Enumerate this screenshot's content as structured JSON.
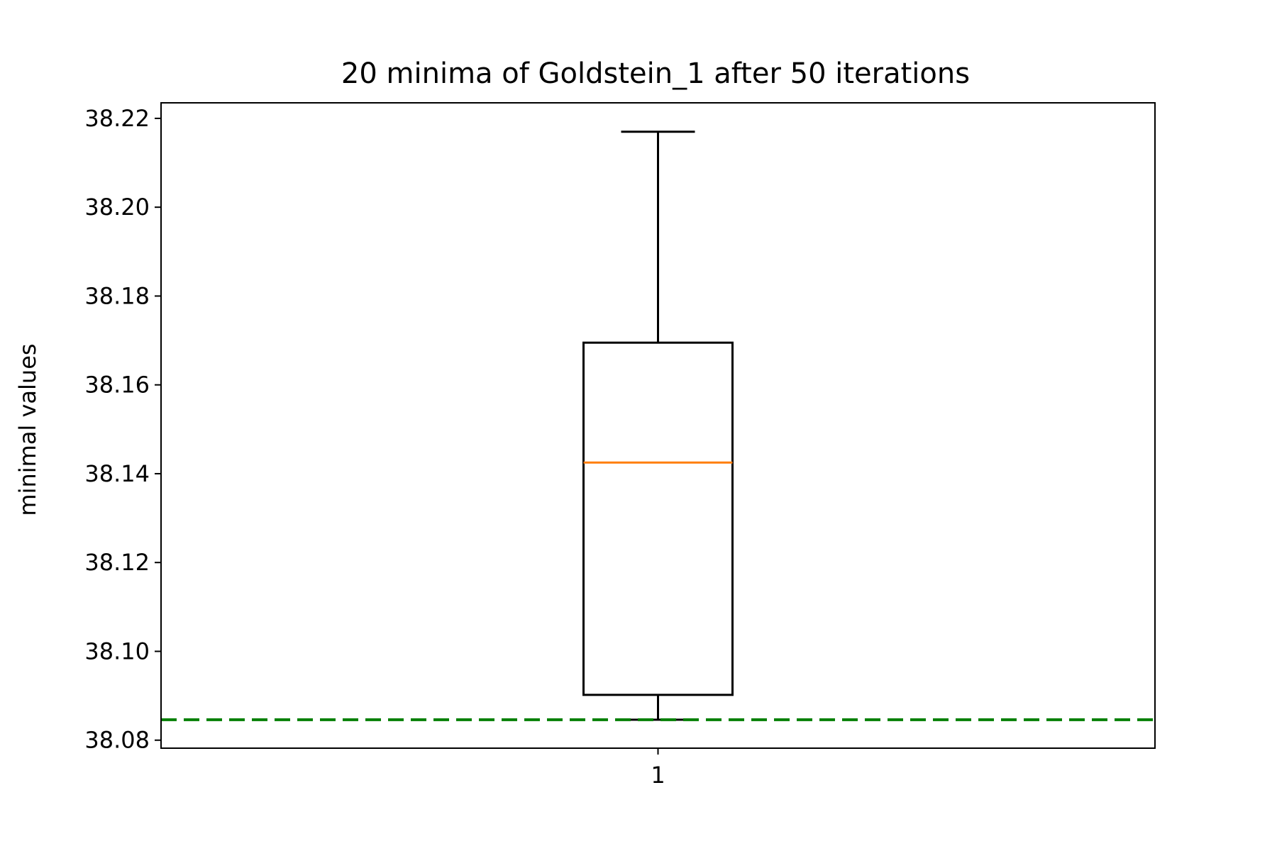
{
  "chart_data": {
    "type": "box",
    "title": "20 minima of Goldstein_1 after 50 iterations",
    "xlabel": "",
    "ylabel": "minimal values",
    "categories": [
      "1"
    ],
    "boxes": [
      {
        "category": "1",
        "whisker_low": 38.0846,
        "q1": 38.0902,
        "median": 38.1425,
        "q3": 38.1695,
        "whisker_high": 38.217
      }
    ],
    "reference_line": {
      "y": 38.0846,
      "style": "dashed",
      "color": "#007f00"
    },
    "yticks": [
      "38.08",
      "38.10",
      "38.12",
      "38.14",
      "38.16",
      "38.18",
      "38.20",
      "38.22"
    ],
    "ytick_values": [
      38.08,
      38.1,
      38.12,
      38.14,
      38.16,
      38.18,
      38.2,
      38.22
    ],
    "ylim": [
      38.0782,
      38.2235
    ],
    "grid": false,
    "colors": {
      "box": "#000000",
      "median": "#ff7f0e",
      "reference": "#007f00"
    }
  }
}
